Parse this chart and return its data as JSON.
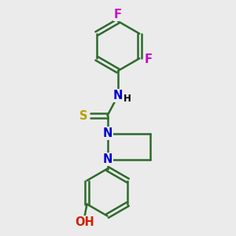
{
  "bg_color": "#ebebeb",
  "bond_color": "#2d6b2d",
  "N_color": "#0000cc",
  "O_color": "#cc2200",
  "F_color": "#cc00cc",
  "S_color": "#b8a000",
  "line_width": 1.8,
  "font_size": 10.5,
  "xlim": [
    0,
    10
  ],
  "ylim": [
    0,
    10
  ]
}
